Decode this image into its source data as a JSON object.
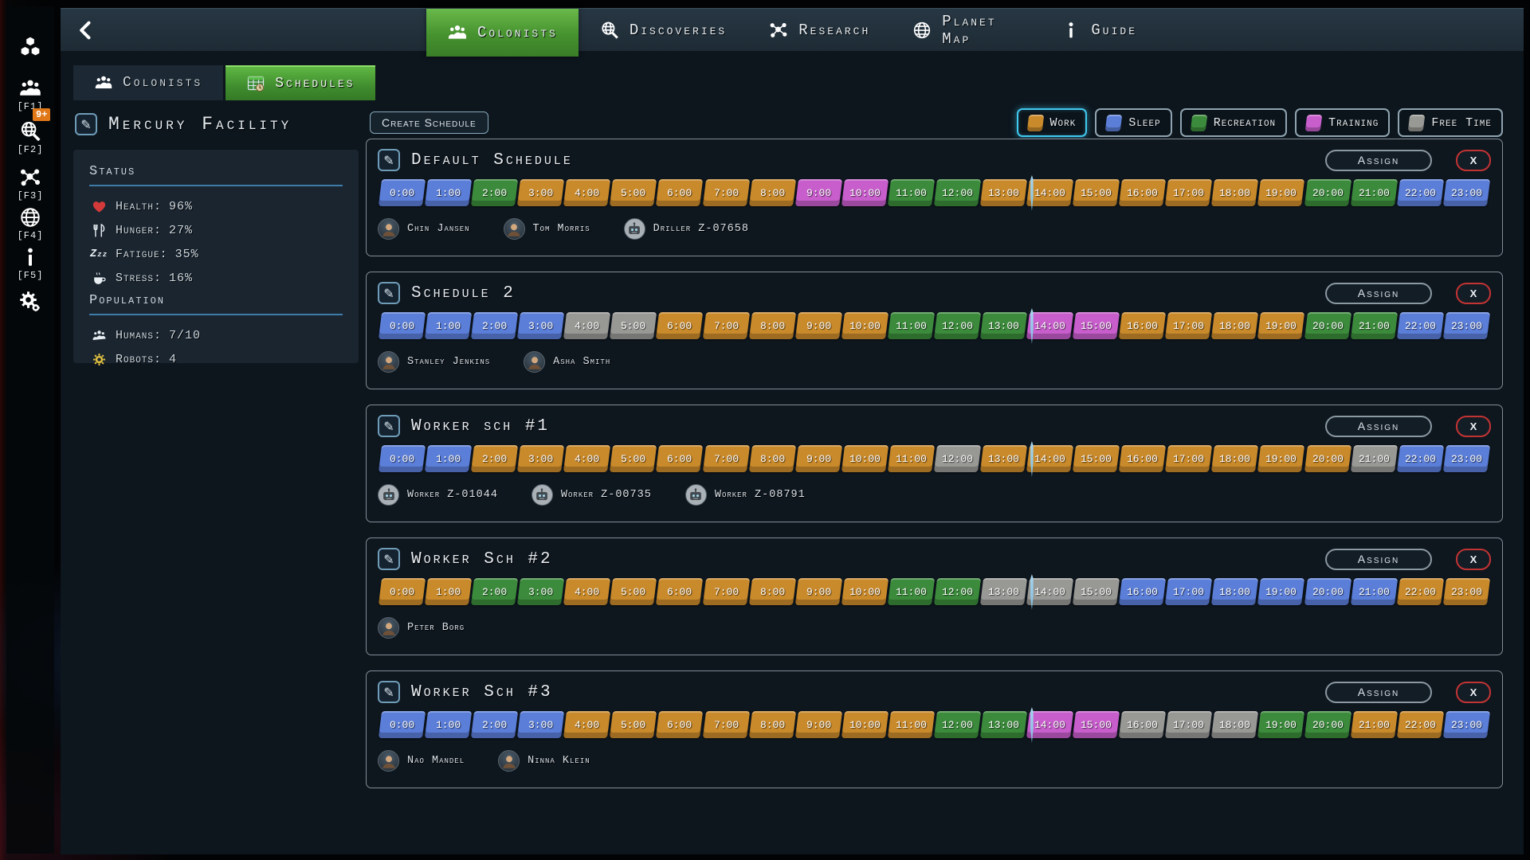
{
  "topbar": {
    "tabs": [
      {
        "label": "Colonists",
        "icon": "people-icon",
        "active": true
      },
      {
        "label": "Discoveries",
        "icon": "search-globe-icon",
        "active": false
      },
      {
        "label": "Research",
        "icon": "molecule-icon",
        "active": false
      },
      {
        "label": "Planet Map",
        "icon": "globe-icon",
        "active": false
      },
      {
        "label": "Guide",
        "icon": "info-icon",
        "active": false
      }
    ]
  },
  "subtabs": [
    {
      "label": "Colonists",
      "icon": "people-icon",
      "active": false
    },
    {
      "label": "Schedules",
      "icon": "schedule-table-icon",
      "active": true
    }
  ],
  "sidebar_strip": {
    "items": [
      {
        "icon": "cubes-icon",
        "fkey": ""
      },
      {
        "icon": "people-icon",
        "fkey": "[F1]"
      },
      {
        "icon": "search-globe-icon",
        "fkey": "[F2]",
        "badge": "9+"
      },
      {
        "icon": "molecule-icon",
        "fkey": "[F3]"
      },
      {
        "icon": "globe-icon",
        "fkey": "[F4]"
      },
      {
        "icon": "info-icon",
        "fkey": "[F5]"
      },
      {
        "icon": "gears-icon",
        "fkey": ""
      }
    ]
  },
  "facility": {
    "title": "Mercury Facility"
  },
  "status": {
    "heading": "Status",
    "items": [
      {
        "icon": "heart-icon",
        "label": "Health:",
        "value": "96%"
      },
      {
        "icon": "utensils-icon",
        "label": "Hunger:",
        "value": "27%"
      },
      {
        "icon": "fatigue-icon",
        "label": "Fatigue:",
        "value": "35%"
      },
      {
        "icon": "stress-icon",
        "label": "Stress:",
        "value": "16%"
      }
    ]
  },
  "population": {
    "heading": "Population",
    "items": [
      {
        "icon": "humans-icon",
        "label": "Humans:",
        "value": "7/10"
      },
      {
        "icon": "robot-gear-icon",
        "label": "Robots:",
        "value": "4"
      }
    ]
  },
  "toolbar": {
    "create_label": "Create Schedule"
  },
  "legend": {
    "selected_color": "#41c8ee",
    "items": [
      {
        "label": "Work",
        "key": "work",
        "selected": true
      },
      {
        "label": "Sleep",
        "key": "sleep",
        "selected": false
      },
      {
        "label": "Recreation",
        "key": "recreation",
        "selected": false
      },
      {
        "label": "Training",
        "key": "training",
        "selected": false
      },
      {
        "label": "Free Time",
        "key": "free",
        "selected": false
      }
    ]
  },
  "activity_colors": {
    "work": "#c98a2b",
    "sleep": "#5b7ed8",
    "recreation": "#3c8b3c",
    "training": "#c75ecb",
    "free": "#989895"
  },
  "hours": [
    "0:00",
    "1:00",
    "2:00",
    "3:00",
    "4:00",
    "5:00",
    "6:00",
    "7:00",
    "8:00",
    "9:00",
    "10:00",
    "11:00",
    "12:00",
    "13:00",
    "14:00",
    "15:00",
    "16:00",
    "17:00",
    "18:00",
    "19:00",
    "20:00",
    "21:00",
    "22:00",
    "23:00"
  ],
  "time_cursor": {
    "hour": 14
  },
  "schedule_actions": {
    "assign": "Assign",
    "close": "X"
  },
  "schedules": [
    {
      "title": "Default Schedule",
      "blocks": [
        "sleep",
        "sleep",
        "recreation",
        "work",
        "work",
        "work",
        "work",
        "work",
        "work",
        "training",
        "training",
        "recreation",
        "recreation",
        "work",
        "work",
        "work",
        "work",
        "work",
        "work",
        "work",
        "recreation",
        "recreation",
        "sleep",
        "sleep"
      ],
      "members": [
        {
          "name": "Chin Jansen",
          "type": "human"
        },
        {
          "name": "Tom Morris",
          "type": "human"
        },
        {
          "name": "Driller Z-07658",
          "type": "robot"
        }
      ]
    },
    {
      "title": "Schedule 2",
      "blocks": [
        "sleep",
        "sleep",
        "sleep",
        "sleep",
        "free",
        "free",
        "work",
        "work",
        "work",
        "work",
        "work",
        "recreation",
        "recreation",
        "recreation",
        "training",
        "training",
        "work",
        "work",
        "work",
        "work",
        "recreation",
        "recreation",
        "sleep",
        "sleep"
      ],
      "members": [
        {
          "name": "Stanley Jenkins",
          "type": "human"
        },
        {
          "name": "Asha Smith",
          "type": "human"
        }
      ]
    },
    {
      "title": "Worker sch #1",
      "blocks": [
        "sleep",
        "sleep",
        "work",
        "work",
        "work",
        "work",
        "work",
        "work",
        "work",
        "work",
        "work",
        "work",
        "free",
        "work",
        "work",
        "work",
        "work",
        "work",
        "work",
        "work",
        "work",
        "free",
        "sleep",
        "sleep"
      ],
      "members": [
        {
          "name": "Worker Z-01044",
          "type": "robot"
        },
        {
          "name": "Worker Z-00735",
          "type": "robot"
        },
        {
          "name": "Worker Z-08791",
          "type": "robot"
        }
      ]
    },
    {
      "title": "Worker Sch #2",
      "blocks": [
        "work",
        "work",
        "recreation",
        "recreation",
        "work",
        "work",
        "work",
        "work",
        "work",
        "work",
        "work",
        "recreation",
        "recreation",
        "free",
        "free",
        "free",
        "sleep",
        "sleep",
        "sleep",
        "sleep",
        "sleep",
        "sleep",
        "work",
        "work"
      ],
      "members": [
        {
          "name": "Peter Borg",
          "type": "human"
        }
      ]
    },
    {
      "title": "Worker Sch #3",
      "blocks": [
        "sleep",
        "sleep",
        "sleep",
        "sleep",
        "work",
        "work",
        "work",
        "work",
        "work",
        "work",
        "work",
        "work",
        "recreation",
        "recreation",
        "training",
        "training",
        "free",
        "free",
        "free",
        "recreation",
        "recreation",
        "work",
        "work",
        "sleep"
      ],
      "members": [
        {
          "name": "Nao Mandel",
          "type": "human"
        },
        {
          "name": "Ninna Klein",
          "type": "human"
        }
      ]
    }
  ]
}
